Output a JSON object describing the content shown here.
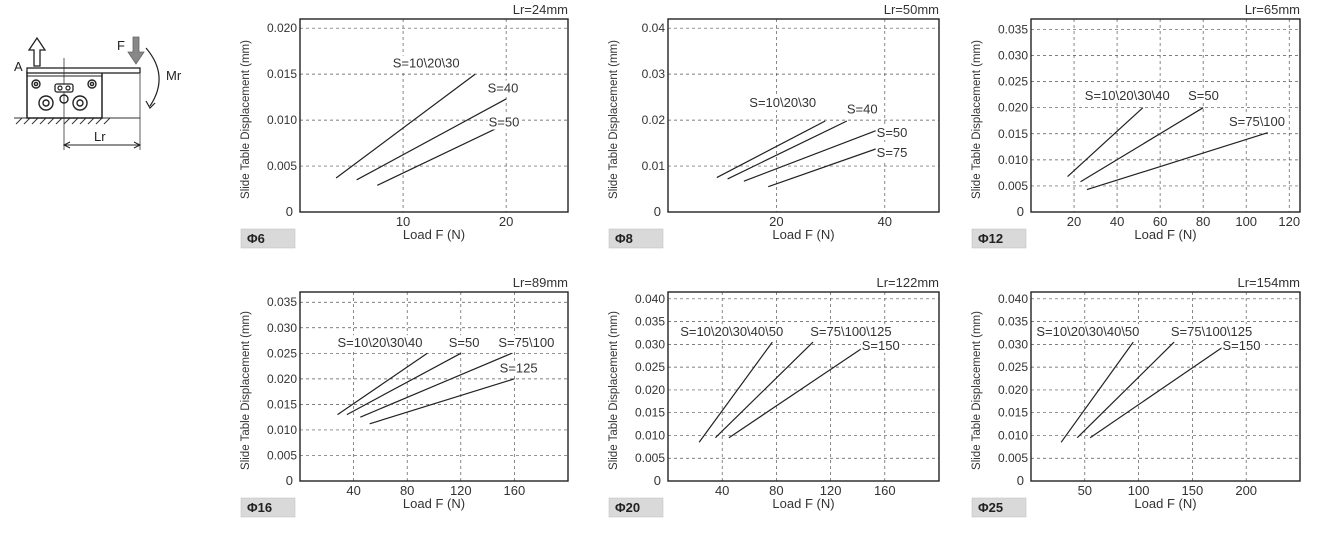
{
  "diagram": {
    "labels": {
      "force": "F",
      "moment": "Mr",
      "axis": "A",
      "distance": "Lr"
    }
  },
  "chart_data": [
    {
      "type": "line",
      "size_label": "Φ6",
      "lr_label": "Lr=24mm",
      "xlabel": "Load F (N)",
      "ylabel": "Slide Table Displacement (mm)",
      "xlim": [
        0,
        26
      ],
      "ylim": [
        0,
        0.021
      ],
      "xticks": [
        0,
        10,
        20
      ],
      "yticks": [
        0.005,
        0.01,
        0.015,
        0.02
      ],
      "ytick_labels": [
        "0.005",
        "0.010",
        "0.015",
        "0.020"
      ],
      "grid": true,
      "y_zero_label": "0",
      "series": [
        {
          "name": "S=10\\20\\30",
          "points": [
            [
              3.5,
              0.0037
            ],
            [
              17,
              0.015
            ]
          ]
        },
        {
          "name": "S=40",
          "points": [
            [
              5.5,
              0.0035
            ],
            [
              20,
              0.0123
            ]
          ]
        },
        {
          "name": "S=50",
          "points": [
            [
              7.5,
              0.0029
            ],
            [
              20,
              0.0096
            ]
          ]
        }
      ],
      "annotations": [
        {
          "text": "S=10\\20\\30",
          "x": 9.0,
          "y": 0.0157
        },
        {
          "text": "S=40",
          "x": 18.2,
          "y": 0.013
        },
        {
          "text": "S=50",
          "x": 18.3,
          "y": 0.0093
        }
      ]
    },
    {
      "type": "line",
      "size_label": "Φ8",
      "lr_label": "Lr=50mm",
      "xlabel": "Load F (N)",
      "ylabel": "Slide Table Displacement (mm)",
      "xlim": [
        0,
        50
      ],
      "ylim": [
        0,
        0.042
      ],
      "xticks": [
        0,
        20,
        40
      ],
      "yticks": [
        0.01,
        0.02,
        0.03,
        0.04
      ],
      "ytick_labels": [
        "0.01",
        "0.02",
        "0.03",
        "0.04"
      ],
      "grid": true,
      "y_zero_label": "0",
      "series": [
        {
          "name": "S=10\\20\\30",
          "points": [
            [
              9,
              0.0075
            ],
            [
              29,
              0.0198
            ]
          ]
        },
        {
          "name": "S=40",
          "points": [
            [
              11,
              0.0072
            ],
            [
              33,
              0.0198
            ]
          ]
        },
        {
          "name": "S=50",
          "points": [
            [
              14,
              0.0067
            ],
            [
              39.5,
              0.0182
            ]
          ]
        },
        {
          "name": "S=75",
          "points": [
            [
              18.5,
              0.0055
            ],
            [
              39.5,
              0.0142
            ]
          ]
        }
      ],
      "annotations": [
        {
          "text": "S=10\\20\\30",
          "x": 15,
          "y": 0.0228
        },
        {
          "text": "S=40",
          "x": 33,
          "y": 0.0214
        },
        {
          "text": "S=50",
          "x": 38.5,
          "y": 0.0163
        },
        {
          "text": "S=75",
          "x": 38.5,
          "y": 0.012
        }
      ]
    },
    {
      "type": "line",
      "size_label": "Φ12",
      "lr_label": "Lr=65mm",
      "xlabel": "Load F (N)",
      "ylabel": "Slide Table Displacement (mm)",
      "xlim": [
        0,
        125
      ],
      "ylim": [
        0,
        0.037
      ],
      "xticks": [
        0,
        20,
        40,
        60,
        80,
        100,
        120
      ],
      "yticks": [
        0.005,
        0.01,
        0.015,
        0.02,
        0.025,
        0.03,
        0.035
      ],
      "ytick_labels": [
        "0.005",
        "0.010",
        "0.015",
        "0.020",
        "0.025",
        "0.030",
        "0.035"
      ],
      "grid": true,
      "y_zero_label": "0",
      "series": [
        {
          "name": "S=10\\20\\30\\40",
          "points": [
            [
              17,
              0.0068
            ],
            [
              52,
              0.02
            ]
          ]
        },
        {
          "name": "S=50",
          "points": [
            [
              23,
              0.0058
            ],
            [
              80,
              0.02
            ]
          ]
        },
        {
          "name": "S=75\\100",
          "points": [
            [
              26,
              0.0043
            ],
            [
              110,
              0.0152
            ]
          ]
        }
      ],
      "annotations": [
        {
          "text": "S=10\\20\\30\\40",
          "x": 25,
          "y": 0.0215
        },
        {
          "text": "S=50",
          "x": 73,
          "y": 0.0215
        },
        {
          "text": "S=75\\100",
          "x": 92,
          "y": 0.0165
        }
      ]
    },
    {
      "type": "line",
      "size_label": "Φ16",
      "lr_label": "Lr=89mm",
      "xlabel": "Load F (N)",
      "ylabel": "Slide Table Displacement (mm)",
      "xlim": [
        0,
        200
      ],
      "ylim": [
        0,
        0.037
      ],
      "xticks": [
        0,
        40,
        80,
        120,
        160
      ],
      "yticks": [
        0.005,
        0.01,
        0.015,
        0.02,
        0.025,
        0.03,
        0.035
      ],
      "ytick_labels": [
        "0.005",
        "0.010",
        "0.015",
        "0.020",
        "0.025",
        "0.030",
        "0.035"
      ],
      "grid": true,
      "y_zero_label": "0",
      "series": [
        {
          "name": "S=10\\20\\30\\40",
          "points": [
            [
              28,
              0.013
            ],
            [
              95,
              0.025
            ]
          ]
        },
        {
          "name": "S=50",
          "points": [
            [
              35,
              0.013
            ],
            [
              120,
              0.025
            ]
          ]
        },
        {
          "name": "S=75\\100",
          "points": [
            [
              45,
              0.0125
            ],
            [
              158,
              0.025
            ]
          ]
        },
        {
          "name": "S=125",
          "points": [
            [
              52,
              0.0112
            ],
            [
              160,
              0.02
            ]
          ]
        }
      ],
      "annotations": [
        {
          "text": "S=10\\20\\30\\40",
          "x": 28,
          "y": 0.0262
        },
        {
          "text": "S=50",
          "x": 111,
          "y": 0.0262
        },
        {
          "text": "S=75\\100",
          "x": 148,
          "y": 0.0262
        },
        {
          "text": "S=125",
          "x": 149,
          "y": 0.0212
        }
      ]
    },
    {
      "type": "line",
      "size_label": "Φ20",
      "lr_label": "Lr=122mm",
      "xlabel": "Load F (N)",
      "ylabel": "Slide Table Displacement (mm)",
      "xlim": [
        0,
        200
      ],
      "ylim": [
        0,
        0.0415
      ],
      "xticks": [
        0,
        40,
        80,
        120,
        160
      ],
      "yticks": [
        0.005,
        0.01,
        0.015,
        0.02,
        0.025,
        0.03,
        0.035,
        0.04
      ],
      "ytick_labels": [
        "0.005",
        "0.010",
        "0.015",
        "0.020",
        "0.025",
        "0.030",
        "0.035",
        "0.040"
      ],
      "grid": true,
      "y_zero_label": "0",
      "series": [
        {
          "name": "S=10\\20\\30\\40\\50",
          "points": [
            [
              23,
              0.0085
            ],
            [
              77,
              0.0305
            ]
          ]
        },
        {
          "name": "S=75\\100\\125",
          "points": [
            [
              35,
              0.0095
            ],
            [
              107,
              0.0305
            ]
          ]
        },
        {
          "name": "S=150",
          "points": [
            [
              45,
              0.0095
            ],
            [
              150,
              0.0305
            ]
          ]
        }
      ],
      "annotations": [
        {
          "text": "S=10\\20\\30\\40\\50",
          "x": 9,
          "y": 0.0318
        },
        {
          "text": "S=75\\100\\125",
          "x": 105,
          "y": 0.0318
        },
        {
          "text": "S=150",
          "x": 143,
          "y": 0.0288
        }
      ]
    },
    {
      "type": "line",
      "size_label": "Φ25",
      "lr_label": "Lr=154mm",
      "xlabel": "Load F (N)",
      "ylabel": "Slide Table Displacement (mm)",
      "xlim": [
        0,
        250
      ],
      "ylim": [
        0,
        0.0415
      ],
      "xticks": [
        0,
        50,
        100,
        150,
        200
      ],
      "yticks": [
        0.005,
        0.01,
        0.015,
        0.02,
        0.025,
        0.03,
        0.035,
        0.04
      ],
      "ytick_labels": [
        "0.005",
        "0.010",
        "0.015",
        "0.020",
        "0.025",
        "0.030",
        "0.035",
        "0.040"
      ],
      "grid": true,
      "y_zero_label": "0",
      "series": [
        {
          "name": "S=10\\20\\30\\40\\50",
          "points": [
            [
              28,
              0.0085
            ],
            [
              95,
              0.0305
            ]
          ]
        },
        {
          "name": "S=75\\100\\125",
          "points": [
            [
              43,
              0.0095
            ],
            [
              133,
              0.0305
            ]
          ]
        },
        {
          "name": "S=150",
          "points": [
            [
              55,
              0.0095
            ],
            [
              185,
              0.0305
            ]
          ]
        }
      ],
      "annotations": [
        {
          "text": "S=10\\20\\30\\40\\50",
          "x": 5,
          "y": 0.0318
        },
        {
          "text": "S=75\\100\\125",
          "x": 130,
          "y": 0.0318
        },
        {
          "text": "S=150",
          "x": 178,
          "y": 0.0288
        }
      ]
    }
  ]
}
